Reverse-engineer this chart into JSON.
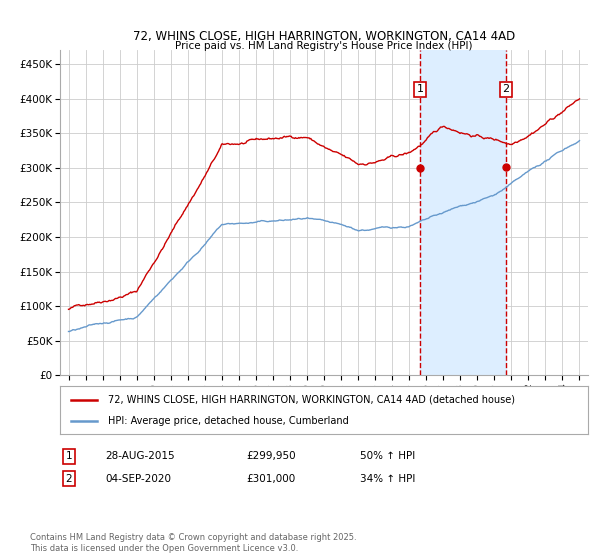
{
  "title": "72, WHINS CLOSE, HIGH HARRINGTON, WORKINGTON, CA14 4AD",
  "subtitle": "Price paid vs. HM Land Registry's House Price Index (HPI)",
  "red_label": "72, WHINS CLOSE, HIGH HARRINGTON, WORKINGTON, CA14 4AD (detached house)",
  "blue_label": "HPI: Average price, detached house, Cumberland",
  "annotation1_date": "28-AUG-2015",
  "annotation1_price": "£299,950",
  "annotation1_hpi": "50% ↑ HPI",
  "annotation2_date": "04-SEP-2020",
  "annotation2_price": "£301,000",
  "annotation2_hpi": "34% ↑ HPI",
  "sale1_year": 2015.66,
  "sale1_value": 299950,
  "sale2_year": 2020.68,
  "sale2_value": 301000,
  "ylim_min": 0,
  "ylim_max": 470000,
  "xlim_min": 1994.5,
  "xlim_max": 2025.5,
  "background_color": "#ffffff",
  "plot_bg_color": "#ffffff",
  "grid_color": "#cccccc",
  "red_color": "#cc0000",
  "blue_color": "#6699cc",
  "shade_color": "#ddeeff",
  "vline_color": "#cc0000",
  "footnote": "Contains HM Land Registry data © Crown copyright and database right 2025.\nThis data is licensed under the Open Government Licence v3.0."
}
